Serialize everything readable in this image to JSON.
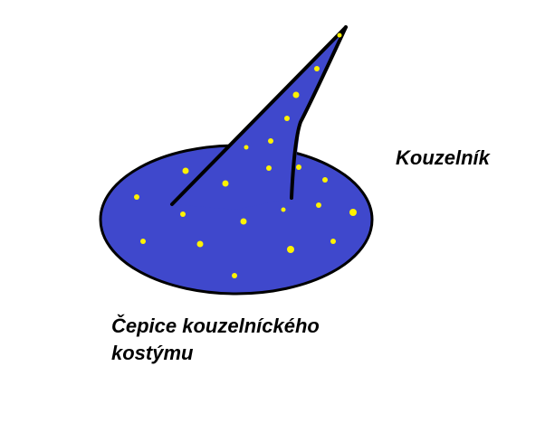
{
  "labels": {
    "title": "Kouzelník",
    "caption_line1": "Čepice kouzelníckého",
    "caption_line2": "kostýmu"
  },
  "colors": {
    "hat_fill": "#3f48cc",
    "star_fill": "#fff200",
    "outline": "#000000",
    "background": "#ffffff"
  }
}
